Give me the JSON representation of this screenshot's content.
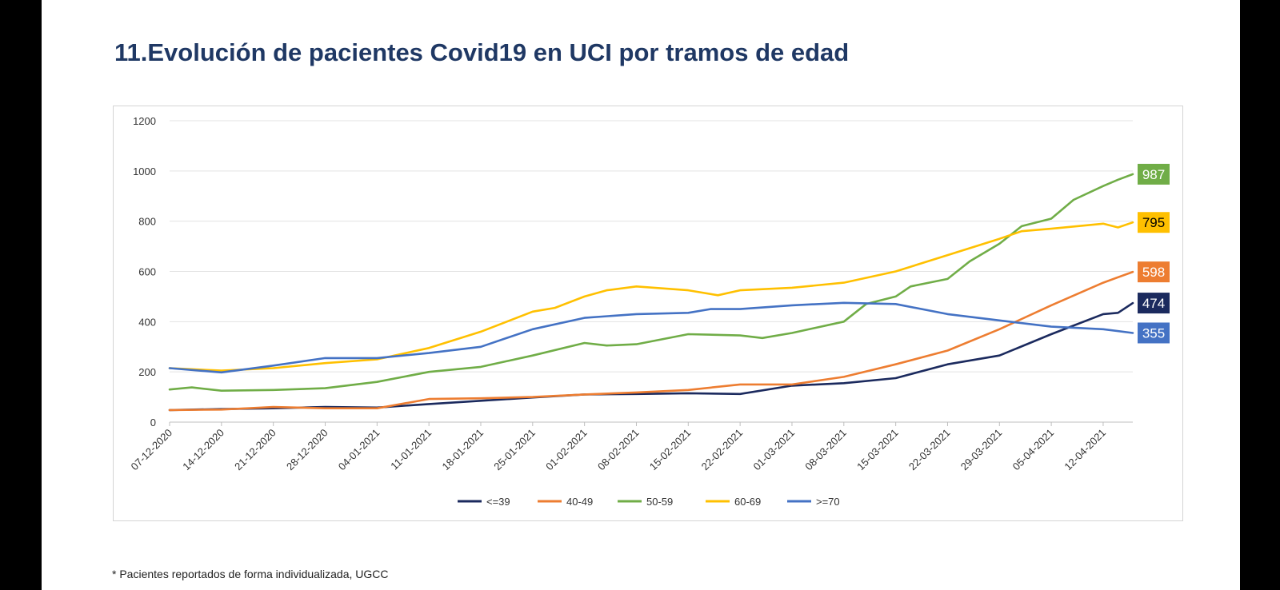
{
  "page": {
    "title": "11.Evolución de pacientes Covid19 en UCI por tramos de edad",
    "footnote": "* Pacientes reportados de forma individualizada, UGCC"
  },
  "chart_data": {
    "type": "line",
    "title": "",
    "xlabel": "",
    "ylabel": "",
    "ylim": [
      0,
      1200
    ],
    "yticks": [
      0,
      200,
      400,
      600,
      800,
      1000,
      1200
    ],
    "grid": true,
    "legend_position": "bottom",
    "x_start": "07-12-2020",
    "x_end": "16-04-2021",
    "x_tick_labels": [
      "07-12-2020",
      "14-12-2020",
      "21-12-2020",
      "28-12-2020",
      "04-01-2021",
      "11-01-2021",
      "18-01-2021",
      "25-01-2021",
      "01-02-2021",
      "08-02-2021",
      "15-02-2021",
      "22-02-2021",
      "01-03-2021",
      "08-03-2021",
      "15-03-2021",
      "22-03-2021",
      "29-03-2021",
      "05-04-2021",
      "12-04-2021"
    ],
    "series": [
      {
        "name": "<=39",
        "color": "#1b2a5e",
        "end_label": "474",
        "points": [
          [
            "07-12-2020",
            48
          ],
          [
            "14-12-2020",
            52
          ],
          [
            "21-12-2020",
            55
          ],
          [
            "28-12-2020",
            60
          ],
          [
            "04-01-2021",
            58
          ],
          [
            "11-01-2021",
            72
          ],
          [
            "18-01-2021",
            85
          ],
          [
            "25-01-2021",
            98
          ],
          [
            "01-02-2021",
            110
          ],
          [
            "08-02-2021",
            112
          ],
          [
            "15-02-2021",
            115
          ],
          [
            "22-02-2021",
            112
          ],
          [
            "01-03-2021",
            145
          ],
          [
            "08-03-2021",
            155
          ],
          [
            "15-03-2021",
            175
          ],
          [
            "22-03-2021",
            230
          ],
          [
            "29-03-2021",
            265
          ],
          [
            "05-04-2021",
            350
          ],
          [
            "12-04-2021",
            430
          ],
          [
            "14-04-2021",
            435
          ],
          [
            "16-04-2021",
            474
          ]
        ]
      },
      {
        "name": "40-49",
        "color": "#ed7d31",
        "end_label": "598",
        "points": [
          [
            "07-12-2020",
            48
          ],
          [
            "14-12-2020",
            50
          ],
          [
            "21-12-2020",
            60
          ],
          [
            "28-12-2020",
            55
          ],
          [
            "04-01-2021",
            55
          ],
          [
            "11-01-2021",
            92
          ],
          [
            "18-01-2021",
            95
          ],
          [
            "25-01-2021",
            100
          ],
          [
            "01-02-2021",
            110
          ],
          [
            "08-02-2021",
            118
          ],
          [
            "15-02-2021",
            128
          ],
          [
            "22-02-2021",
            150
          ],
          [
            "01-03-2021",
            150
          ],
          [
            "08-03-2021",
            180
          ],
          [
            "15-03-2021",
            230
          ],
          [
            "22-03-2021",
            285
          ],
          [
            "29-03-2021",
            370
          ],
          [
            "05-04-2021",
            465
          ],
          [
            "12-04-2021",
            555
          ],
          [
            "16-04-2021",
            598
          ]
        ]
      },
      {
        "name": "50-59",
        "color": "#70ad47",
        "end_label": "987",
        "points": [
          [
            "07-12-2020",
            130
          ],
          [
            "10-12-2020",
            138
          ],
          [
            "14-12-2020",
            125
          ],
          [
            "21-12-2020",
            128
          ],
          [
            "28-12-2020",
            135
          ],
          [
            "04-01-2021",
            160
          ],
          [
            "11-01-2021",
            200
          ],
          [
            "18-01-2021",
            220
          ],
          [
            "25-01-2021",
            265
          ],
          [
            "01-02-2021",
            315
          ],
          [
            "04-02-2021",
            305
          ],
          [
            "08-02-2021",
            310
          ],
          [
            "15-02-2021",
            350
          ],
          [
            "22-02-2021",
            345
          ],
          [
            "25-02-2021",
            335
          ],
          [
            "01-03-2021",
            355
          ],
          [
            "08-03-2021",
            400
          ],
          [
            "11-03-2021",
            470
          ],
          [
            "15-03-2021",
            500
          ],
          [
            "17-03-2021",
            540
          ],
          [
            "22-03-2021",
            570
          ],
          [
            "25-03-2021",
            640
          ],
          [
            "29-03-2021",
            710
          ],
          [
            "01-04-2021",
            780
          ],
          [
            "05-04-2021",
            810
          ],
          [
            "08-04-2021",
            885
          ],
          [
            "12-04-2021",
            940
          ],
          [
            "14-04-2021",
            965
          ],
          [
            "16-04-2021",
            987
          ]
        ]
      },
      {
        "name": "60-69",
        "color": "#ffc000",
        "end_label": "795",
        "points": [
          [
            "07-12-2020",
            215
          ],
          [
            "14-12-2020",
            205
          ],
          [
            "21-12-2020",
            215
          ],
          [
            "28-12-2020",
            235
          ],
          [
            "04-01-2021",
            250
          ],
          [
            "11-01-2021",
            295
          ],
          [
            "18-01-2021",
            360
          ],
          [
            "25-01-2021",
            440
          ],
          [
            "28-01-2021",
            455
          ],
          [
            "01-02-2021",
            500
          ],
          [
            "04-02-2021",
            525
          ],
          [
            "08-02-2021",
            540
          ],
          [
            "15-02-2021",
            525
          ],
          [
            "19-02-2021",
            505
          ],
          [
            "22-02-2021",
            525
          ],
          [
            "01-03-2021",
            535
          ],
          [
            "08-03-2021",
            555
          ],
          [
            "15-03-2021",
            600
          ],
          [
            "22-03-2021",
            665
          ],
          [
            "29-03-2021",
            730
          ],
          [
            "01-04-2021",
            760
          ],
          [
            "05-04-2021",
            770
          ],
          [
            "12-04-2021",
            790
          ],
          [
            "14-04-2021",
            775
          ],
          [
            "16-04-2021",
            795
          ]
        ]
      },
      {
        "name": ">=70",
        "color": "#4472c4",
        "end_label": "355",
        "points": [
          [
            "07-12-2020",
            215
          ],
          [
            "14-12-2020",
            198
          ],
          [
            "21-12-2020",
            225
          ],
          [
            "28-12-2020",
            255
          ],
          [
            "04-01-2021",
            255
          ],
          [
            "11-01-2021",
            275
          ],
          [
            "18-01-2021",
            300
          ],
          [
            "25-01-2021",
            370
          ],
          [
            "01-02-2021",
            415
          ],
          [
            "08-02-2021",
            430
          ],
          [
            "15-02-2021",
            435
          ],
          [
            "18-02-2021",
            450
          ],
          [
            "22-02-2021",
            450
          ],
          [
            "01-03-2021",
            465
          ],
          [
            "08-03-2021",
            475
          ],
          [
            "15-03-2021",
            470
          ],
          [
            "22-03-2021",
            430
          ],
          [
            "29-03-2021",
            405
          ],
          [
            "05-04-2021",
            380
          ],
          [
            "12-04-2021",
            370
          ],
          [
            "16-04-2021",
            355
          ]
        ]
      }
    ]
  }
}
